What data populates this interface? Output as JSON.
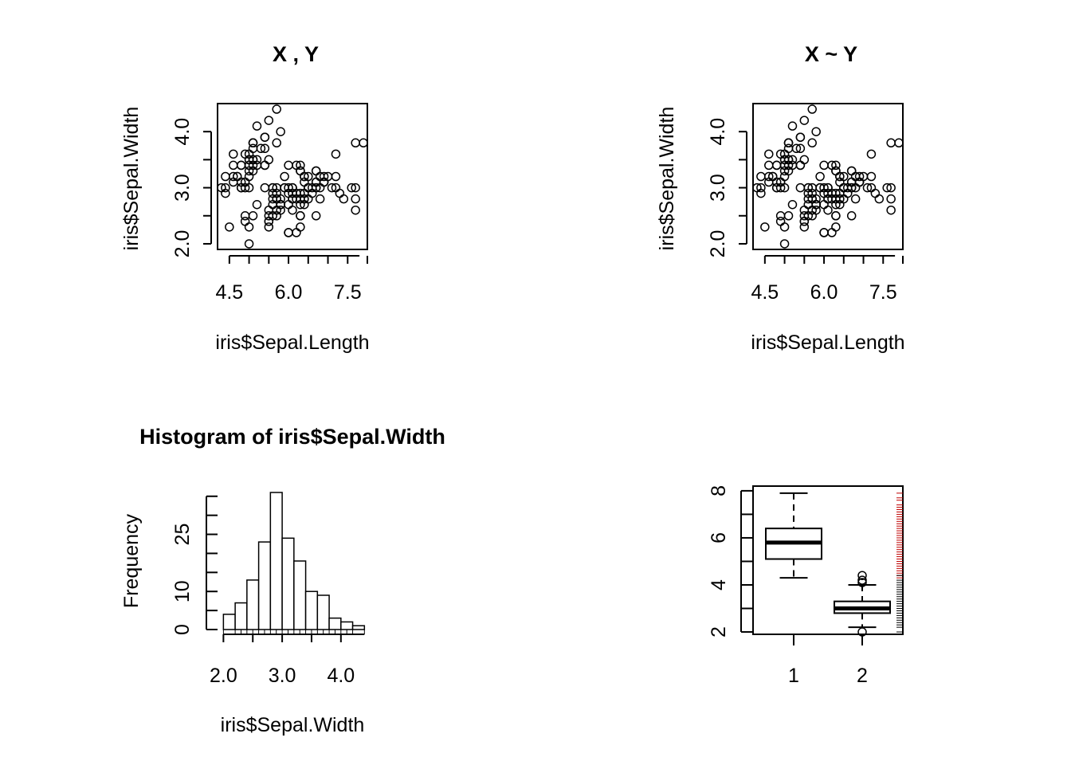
{
  "chart_data": [
    {
      "type": "scatter",
      "title": "X , Y",
      "xlabel": "iris$Sepal.Length",
      "ylabel": "iris$Sepal.Width",
      "xlim": [
        4.2,
        8.0
      ],
      "ylim": [
        1.9,
        4.5
      ],
      "xticks": [
        4.5,
        6.0,
        7.5
      ],
      "xtick_labels": [
        "4.5",
        "6.0",
        "7.5"
      ],
      "yticks": [
        2.0,
        3.0,
        4.0
      ],
      "ytick_labels": [
        "2.0",
        "3.0",
        "4.0"
      ],
      "points": [
        [
          5.1,
          3.5
        ],
        [
          4.9,
          3.0
        ],
        [
          4.7,
          3.2
        ],
        [
          4.6,
          3.1
        ],
        [
          5.0,
          3.6
        ],
        [
          5.4,
          3.9
        ],
        [
          4.6,
          3.4
        ],
        [
          5.0,
          3.4
        ],
        [
          4.4,
          2.9
        ],
        [
          4.9,
          3.1
        ],
        [
          5.4,
          3.7
        ],
        [
          4.8,
          3.4
        ],
        [
          4.8,
          3.0
        ],
        [
          4.3,
          3.0
        ],
        [
          5.8,
          4.0
        ],
        [
          5.7,
          4.4
        ],
        [
          5.4,
          3.9
        ],
        [
          5.1,
          3.5
        ],
        [
          5.7,
          3.8
        ],
        [
          5.1,
          3.8
        ],
        [
          5.4,
          3.4
        ],
        [
          5.1,
          3.7
        ],
        [
          4.6,
          3.6
        ],
        [
          5.1,
          3.3
        ],
        [
          4.8,
          3.4
        ],
        [
          5.0,
          3.0
        ],
        [
          5.0,
          3.4
        ],
        [
          5.2,
          3.5
        ],
        [
          5.2,
          3.4
        ],
        [
          4.7,
          3.2
        ],
        [
          4.8,
          3.1
        ],
        [
          5.4,
          3.4
        ],
        [
          5.2,
          4.1
        ],
        [
          5.5,
          4.2
        ],
        [
          4.9,
          3.1
        ],
        [
          5.0,
          3.2
        ],
        [
          5.5,
          3.5
        ],
        [
          4.9,
          3.6
        ],
        [
          4.4,
          3.0
        ],
        [
          5.1,
          3.4
        ],
        [
          5.0,
          3.5
        ],
        [
          4.5,
          2.3
        ],
        [
          4.4,
          3.2
        ],
        [
          5.0,
          3.5
        ],
        [
          5.1,
          3.8
        ],
        [
          4.8,
          3.0
        ],
        [
          5.1,
          3.8
        ],
        [
          4.6,
          3.2
        ],
        [
          5.3,
          3.7
        ],
        [
          5.0,
          3.3
        ],
        [
          7.0,
          3.2
        ],
        [
          6.4,
          3.2
        ],
        [
          6.9,
          3.1
        ],
        [
          5.5,
          2.3
        ],
        [
          6.5,
          2.8
        ],
        [
          5.7,
          2.8
        ],
        [
          6.3,
          3.3
        ],
        [
          4.9,
          2.4
        ],
        [
          6.6,
          2.9
        ],
        [
          5.2,
          2.7
        ],
        [
          5.0,
          2.0
        ],
        [
          5.9,
          3.0
        ],
        [
          6.0,
          2.2
        ],
        [
          6.1,
          2.9
        ],
        [
          5.6,
          2.9
        ],
        [
          6.7,
          3.1
        ],
        [
          5.6,
          3.0
        ],
        [
          5.8,
          2.7
        ],
        [
          6.2,
          2.2
        ],
        [
          5.6,
          2.5
        ],
        [
          5.9,
          3.2
        ],
        [
          6.1,
          2.8
        ],
        [
          6.3,
          2.5
        ],
        [
          6.1,
          2.8
        ],
        [
          6.4,
          2.9
        ],
        [
          6.6,
          3.0
        ],
        [
          6.8,
          2.8
        ],
        [
          6.7,
          3.0
        ],
        [
          6.0,
          2.9
        ],
        [
          5.7,
          2.6
        ],
        [
          5.5,
          2.4
        ],
        [
          5.5,
          2.4
        ],
        [
          5.8,
          2.7
        ],
        [
          6.0,
          2.7
        ],
        [
          5.4,
          3.0
        ],
        [
          6.0,
          3.4
        ],
        [
          6.7,
          3.1
        ],
        [
          6.3,
          2.3
        ],
        [
          5.6,
          3.0
        ],
        [
          5.5,
          2.5
        ],
        [
          5.5,
          2.6
        ],
        [
          6.1,
          3.0
        ],
        [
          5.8,
          2.6
        ],
        [
          5.0,
          2.3
        ],
        [
          5.6,
          2.7
        ],
        [
          5.7,
          3.0
        ],
        [
          5.7,
          2.9
        ],
        [
          6.2,
          2.9
        ],
        [
          5.1,
          2.5
        ],
        [
          5.7,
          2.8
        ],
        [
          6.3,
          3.3
        ],
        [
          5.8,
          2.7
        ],
        [
          7.1,
          3.0
        ],
        [
          6.3,
          2.9
        ],
        [
          6.5,
          3.0
        ],
        [
          7.6,
          3.0
        ],
        [
          4.9,
          2.5
        ],
        [
          7.3,
          2.9
        ],
        [
          6.7,
          2.5
        ],
        [
          7.2,
          3.6
        ],
        [
          6.5,
          3.2
        ],
        [
          6.4,
          2.7
        ],
        [
          6.8,
          3.0
        ],
        [
          5.7,
          2.5
        ],
        [
          5.8,
          2.8
        ],
        [
          6.4,
          3.2
        ],
        [
          6.5,
          3.0
        ],
        [
          7.7,
          3.8
        ],
        [
          7.7,
          2.6
        ],
        [
          6.0,
          2.2
        ],
        [
          6.9,
          3.2
        ],
        [
          5.6,
          2.8
        ],
        [
          7.7,
          2.8
        ],
        [
          6.3,
          2.7
        ],
        [
          6.7,
          3.3
        ],
        [
          7.2,
          3.2
        ],
        [
          6.2,
          2.8
        ],
        [
          6.1,
          3.0
        ],
        [
          6.4,
          2.8
        ],
        [
          7.2,
          3.0
        ],
        [
          7.4,
          2.8
        ],
        [
          7.9,
          3.8
        ],
        [
          6.4,
          2.8
        ],
        [
          6.3,
          2.8
        ],
        [
          6.1,
          2.6
        ],
        [
          7.7,
          3.0
        ],
        [
          6.3,
          3.4
        ],
        [
          6.4,
          3.1
        ],
        [
          6.0,
          3.0
        ],
        [
          6.9,
          3.1
        ],
        [
          6.7,
          3.1
        ],
        [
          6.9,
          3.1
        ],
        [
          5.8,
          2.7
        ],
        [
          6.8,
          3.2
        ],
        [
          6.7,
          3.3
        ],
        [
          6.7,
          3.0
        ],
        [
          6.3,
          2.5
        ],
        [
          6.5,
          3.0
        ],
        [
          6.2,
          3.4
        ],
        [
          5.9,
          3.0
        ]
      ]
    },
    {
      "type": "scatter",
      "title": "X ~ Y",
      "xlabel": "iris$Sepal.Length",
      "ylabel": "iris$Sepal.Width",
      "xlim": [
        4.2,
        8.0
      ],
      "ylim": [
        1.9,
        4.5
      ],
      "xticks": [
        4.5,
        6.0,
        7.5
      ],
      "xtick_labels": [
        "4.5",
        "6.0",
        "7.5"
      ],
      "yticks": [
        2.0,
        3.0,
        4.0
      ],
      "ytick_labels": [
        "2.0",
        "3.0",
        "4.0"
      ],
      "same_points_as_chart": 0
    },
    {
      "type": "bar",
      "title": "Histogram of iris$Sepal.Width",
      "xlabel": "iris$Sepal.Width",
      "ylabel": "Frequency",
      "xlim": [
        1.9,
        4.45
      ],
      "ylim": [
        0,
        36
      ],
      "xticks": [
        2.0,
        3.0,
        4.0
      ],
      "xtick_labels": [
        "2.0",
        "3.0",
        "4.0"
      ],
      "yticks": [
        0,
        10,
        25
      ],
      "ytick_labels": [
        "0",
        "10",
        "25"
      ],
      "bin_edges": [
        2.0,
        2.2,
        2.4,
        2.6,
        2.8,
        3.0,
        3.2,
        3.4,
        3.6,
        3.8,
        4.0,
        4.2,
        4.4
      ],
      "counts": [
        4,
        7,
        13,
        23,
        36,
        24,
        18,
        10,
        9,
        3,
        2,
        1
      ],
      "rug": true
    },
    {
      "type": "box",
      "title": "",
      "categories": [
        "1",
        "2"
      ],
      "ylim": [
        1.9,
        8.2
      ],
      "yticks": [
        2,
        4,
        6,
        8
      ],
      "ytick_labels": [
        "2",
        "4",
        "6",
        "8"
      ],
      "boxes": [
        {
          "name": "1",
          "whisker_low": 4.3,
          "q1": 5.1,
          "median": 5.8,
          "q3": 6.4,
          "whisker_high": 7.9,
          "outliers": []
        },
        {
          "name": "2",
          "whisker_low": 2.2,
          "q1": 2.8,
          "median": 3.0,
          "q3": 3.3,
          "whisker_high": 4.0,
          "outliers": [
            4.4,
            4.1,
            4.2,
            2.0
          ]
        }
      ],
      "rug_color": "#c00000"
    }
  ]
}
